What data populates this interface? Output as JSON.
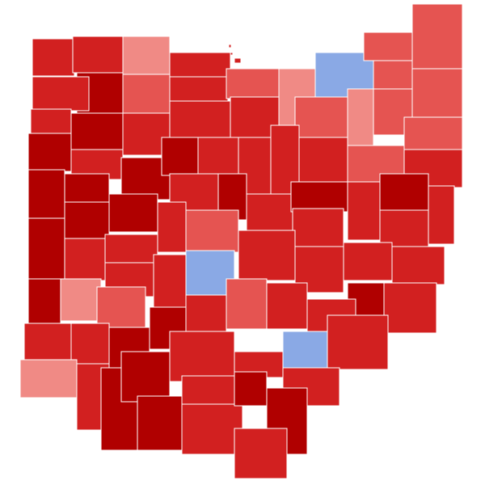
{
  "map": {
    "colors": {
      "strong_red": "#b00000",
      "red": "#d22020",
      "medium_red": "#e55451",
      "light_red": "#f08a85",
      "blue": "#8aa9e5"
    },
    "counties": [
      "red",
      "red",
      "light_red",
      "medium_red",
      "red",
      "red",
      "medium_red",
      "light_red",
      "blue",
      "medium_red",
      "medium_red",
      "medium_red",
      "medium_red",
      "medium_red",
      "light_red",
      "medium_red",
      "red",
      "red",
      "red",
      "strong_red",
      "red",
      "red",
      "strong_red",
      "strong_red",
      "red",
      "strong_red",
      "strong_red",
      "red",
      "red",
      "red",
      "red",
      "medium_red",
      "medium_red",
      "red",
      "strong_red",
      "strong_red",
      "strong_red",
      "red",
      "strong_red",
      "red",
      "strong_red",
      "red",
      "strong_red",
      "red",
      "red",
      "strong_red",
      "red",
      "medium_red",
      "red",
      "strong_red",
      "red",
      "red",
      "blue",
      "red",
      "red",
      "red",
      "red",
      "red",
      "red",
      "strong_red",
      "light_red",
      "medium_red",
      "medium_red",
      "red",
      "strong_red",
      "red",
      "red",
      "red",
      "red",
      "red",
      "strong_red",
      "strong_red",
      "light_red",
      "red",
      "strong_red",
      "strong_red",
      "red",
      "red",
      "blue",
      "red",
      "red",
      "strong_red",
      "red",
      "red",
      "strong_red",
      "strong_red",
      "red"
    ]
  }
}
